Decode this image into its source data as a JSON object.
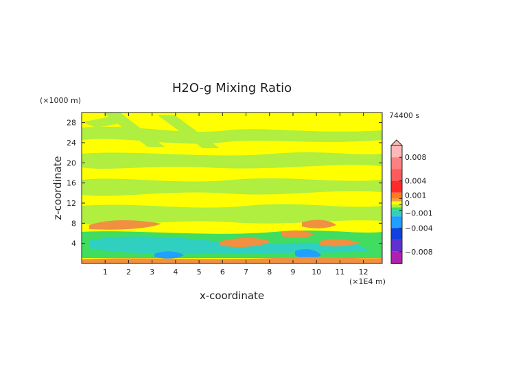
{
  "chart_data": {
    "type": "heatmap",
    "title": "H2O-g Mixing Ratio",
    "xlabel": "x-coordinate",
    "ylabel": "z-coordinate",
    "x_unit_label": "(×1E4 m)",
    "y_unit_label": "(×1000 m)",
    "time_label": "74400 s",
    "xlim": [
      0,
      12.8
    ],
    "ylim": [
      0,
      30
    ],
    "x_ticks": [
      "1",
      "2",
      "3",
      "4",
      "5",
      "6",
      "7",
      "8",
      "9",
      "10",
      "11",
      "12"
    ],
    "y_ticks": [
      "4",
      "8",
      "12",
      "16",
      "20",
      "24",
      "28"
    ],
    "colorbar": {
      "labels": [
        "0.008",
        "0.004",
        "0.001",
        "0",
        "−0.001",
        "−0.004",
        "−0.008"
      ],
      "stops": [
        {
          "value": 0.01,
          "color": "#ffb8b8"
        },
        {
          "value": 0.008,
          "color": "#ff8080"
        },
        {
          "value": 0.006,
          "color": "#ff5a5a"
        },
        {
          "value": 0.004,
          "color": "#ff2a2a"
        },
        {
          "value": 0.002,
          "color": "#ff7a1a"
        },
        {
          "value": 0.001,
          "color": "#f0a040"
        },
        {
          "value": 0.0005,
          "color": "#ffff00"
        },
        {
          "value": 0.0,
          "color": "#b0ee40"
        },
        {
          "value": -0.0005,
          "color": "#40dd60"
        },
        {
          "value": -0.001,
          "color": "#30d0c0"
        },
        {
          "value": -0.002,
          "color": "#20a0ff"
        },
        {
          "value": -0.004,
          "color": "#1040e0"
        },
        {
          "value": -0.006,
          "color": "#6030d0"
        },
        {
          "value": -0.008,
          "color": "#b020b0"
        },
        {
          "value": -0.01,
          "color": "#ff20c0"
        }
      ]
    },
    "colors": {
      "background": "#ffff00",
      "light_green": "#b0ee40",
      "green": "#40dd60",
      "cyan": "#30d0c0",
      "blue": "#20a0ff",
      "orange": "#f09040"
    }
  }
}
